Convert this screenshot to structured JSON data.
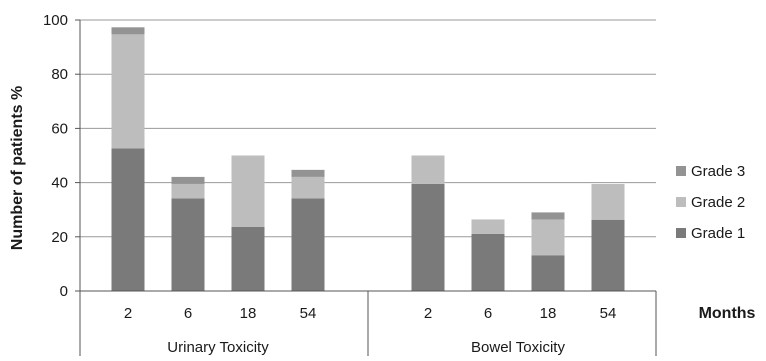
{
  "chart_data": {
    "type": "bar",
    "stacked": true,
    "title": "",
    "ylabel": "Number of patients %",
    "xlabel": "Months",
    "ylim": [
      0,
      100
    ],
    "yticks": [
      0,
      20,
      40,
      60,
      80,
      100
    ],
    "grid": true,
    "legend_position": "right",
    "groups": [
      {
        "name": "Urinary Toxicity",
        "categories": [
          "2",
          "6",
          "18",
          "54"
        ]
      },
      {
        "name": "Bowel Toxicity",
        "categories": [
          "2",
          "6",
          "18",
          "54"
        ]
      }
    ],
    "series": [
      {
        "name": "Grade 1",
        "color": "#7a7a7a",
        "values": [
          52.6,
          34.2,
          23.7,
          34.2,
          39.5,
          21.1,
          13.2,
          26.3
        ]
      },
      {
        "name": "Grade 2",
        "color": "#bdbdbd",
        "values": [
          42.1,
          5.3,
          26.3,
          7.9,
          10.5,
          5.3,
          13.2,
          13.2
        ]
      },
      {
        "name": "Grade 3",
        "color": "#939393",
        "values": [
          2.6,
          2.6,
          0,
          2.6,
          0,
          0,
          2.6,
          0
        ]
      }
    ]
  }
}
